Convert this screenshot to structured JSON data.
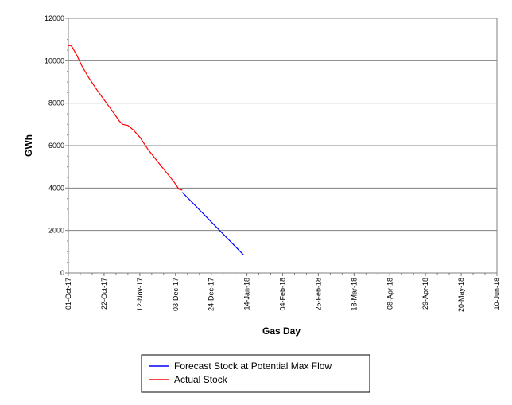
{
  "chart_data": {
    "type": "line",
    "title": "",
    "xlabel": "Gas Day",
    "ylabel": "GWh",
    "ylim": [
      0,
      12000
    ],
    "yticks": [
      0,
      2000,
      4000,
      6000,
      8000,
      10000,
      12000
    ],
    "ytick_labels": [
      "0",
      "2000",
      "4000",
      "6000",
      "8000",
      "10000",
      "12000"
    ],
    "xlim": [
      "2017-10-01",
      "2018-06-10"
    ],
    "xticks": [
      "2017-10-01",
      "2017-10-22",
      "2017-11-12",
      "2017-12-03",
      "2017-12-24",
      "2018-01-14",
      "2018-02-04",
      "2018-02-25",
      "2018-03-18",
      "2018-04-08",
      "2018-04-29",
      "2018-05-20",
      "2018-06-10"
    ],
    "xtick_labels": [
      "01-Oct-17",
      "22-Oct-17",
      "12-Nov-17",
      "03-Dec-17",
      "24-Dec-17",
      "14-Jan-18",
      "04-Feb-18",
      "25-Feb-18",
      "18-Mar-18",
      "08-Apr-18",
      "29-Apr-18",
      "20-May-18",
      "10-Jun-18"
    ],
    "grid": "horizontal",
    "legend_position": "bottom",
    "series": [
      {
        "name": "Forecast Stock at Potential Max Flow",
        "color": "#0000ff",
        "points": [
          [
            "2017-12-07",
            3800
          ],
          [
            "2018-01-12",
            850
          ]
        ]
      },
      {
        "name": "Actual Stock",
        "color": "#ff0000",
        "points": [
          [
            "2017-10-01",
            10700
          ],
          [
            "2017-10-02",
            10720
          ],
          [
            "2017-10-03",
            10680
          ],
          [
            "2017-10-06",
            10250
          ],
          [
            "2017-10-09",
            9750
          ],
          [
            "2017-10-13",
            9200
          ],
          [
            "2017-10-18",
            8600
          ],
          [
            "2017-10-23",
            8050
          ],
          [
            "2017-10-28",
            7500
          ],
          [
            "2017-10-31",
            7150
          ],
          [
            "2017-11-02",
            7000
          ],
          [
            "2017-11-05",
            6950
          ],
          [
            "2017-11-08",
            6750
          ],
          [
            "2017-11-12",
            6400
          ],
          [
            "2017-11-17",
            5800
          ],
          [
            "2017-11-22",
            5300
          ],
          [
            "2017-11-27",
            4800
          ],
          [
            "2017-12-02",
            4300
          ],
          [
            "2017-12-05",
            3950
          ],
          [
            "2017-12-07",
            3900
          ]
        ]
      }
    ]
  }
}
